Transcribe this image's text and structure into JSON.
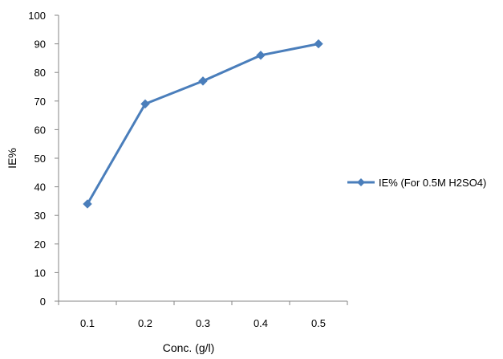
{
  "chart_data": {
    "type": "line",
    "title": "",
    "xlabel": "Conc. (g/l)",
    "ylabel": "IE%",
    "categories": [
      "0.1",
      "0.2",
      "0.3",
      "0.4",
      "0.5"
    ],
    "series": [
      {
        "name": "IE% (For 0.5M H2SO4)",
        "values": [
          34,
          69,
          77,
          86,
          90
        ],
        "color": "#4a7ebb",
        "marker": "diamond"
      }
    ],
    "ylim": [
      0,
      100
    ],
    "yticks": [
      0,
      10,
      20,
      30,
      40,
      50,
      60,
      70,
      80,
      90,
      100
    ],
    "grid": false,
    "legend_position": "right"
  }
}
